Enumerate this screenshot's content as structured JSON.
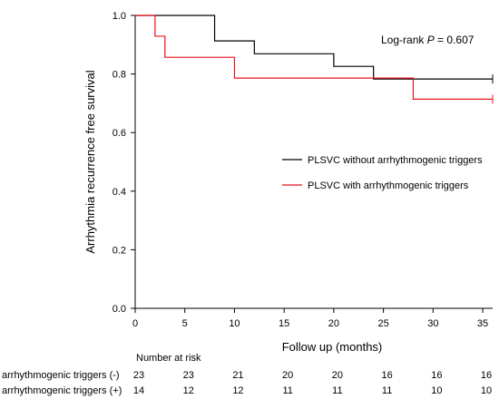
{
  "chart_data": {
    "type": "line",
    "xlabel": "Follow up (months)",
    "ylabel": "Arrhythmia recurrence free survival",
    "xlim": [
      0,
      36
    ],
    "ylim": [
      0,
      1.0
    ],
    "x_ticks": [
      0,
      5,
      10,
      15,
      20,
      25,
      30,
      35
    ],
    "x_tick_labels": [
      "0",
      "5",
      "10",
      "15",
      "20",
      "25",
      "30",
      "35"
    ],
    "y_ticks": [
      0,
      0.2,
      0.4,
      0.6,
      0.8,
      1.0
    ],
    "y_tick_labels": [
      "0.0",
      "0.2",
      "0.4",
      "0.6",
      "0.8",
      "1.0"
    ],
    "annotation": {
      "prefix": "Log-rank ",
      "italic": "P",
      "suffix": " = 0.607"
    },
    "legend_placement": "right",
    "series": [
      {
        "name": "PLSVC without arrhythmogenic triggers",
        "color": "#000000",
        "steps": [
          [
            0,
            1.0
          ],
          [
            8,
            0.913
          ],
          [
            12,
            0.869
          ],
          [
            20,
            0.826
          ],
          [
            24,
            0.783
          ],
          [
            36,
            0.783
          ]
        ],
        "censor": [
          [
            36,
            0.783
          ]
        ]
      },
      {
        "name": "PLSVC with arrhythmogenic triggers",
        "color": "#e8141c",
        "steps": [
          [
            0,
            1.0
          ],
          [
            2,
            0.929
          ],
          [
            3,
            0.857
          ],
          [
            10,
            0.786
          ],
          [
            28,
            0.714
          ],
          [
            36,
            0.714
          ]
        ],
        "censor": [
          [
            36,
            0.714
          ]
        ]
      }
    ],
    "risk_table": {
      "title": "Number at risk",
      "times": [
        0,
        5,
        10,
        15,
        20,
        25,
        30,
        35
      ],
      "rows": [
        {
          "label": "arrhythmogenic triggers (-)",
          "values": [
            "23",
            "23",
            "21",
            "20",
            "20",
            "16",
            "16",
            "16"
          ]
        },
        {
          "label": "arrhythmogenic triggers (+)",
          "values": [
            "14",
            "12",
            "12",
            "11",
            "11",
            "11",
            "10",
            "10"
          ]
        }
      ]
    }
  }
}
